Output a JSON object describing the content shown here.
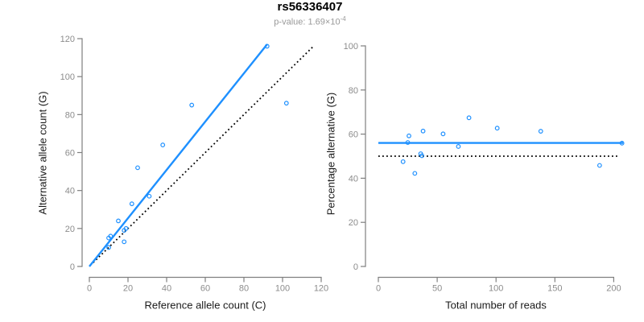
{
  "title": "rs56336407",
  "subtitle": {
    "base": "p-value: 1.69×10",
    "exponent": "-4"
  },
  "colors": {
    "accent": "#1E90FF",
    "axis_line": "#7f7f7f",
    "tick_label": "#8c8c8c",
    "axis_label": "#1a1a1a",
    "title": "#000000",
    "subtitle": "#999999",
    "dotted_line": "#000000",
    "background": "#ffffff"
  },
  "chart_data": [
    {
      "id": "allele-counts",
      "type": "scatter",
      "xlabel": "Reference allele count (C)",
      "ylabel": "Alternative allele count (G)",
      "xlim": [
        0,
        120
      ],
      "ylim": [
        0,
        120
      ],
      "xticks": [
        0,
        20,
        40,
        60,
        80,
        100,
        120
      ],
      "yticks": [
        0,
        20,
        40,
        60,
        80,
        100,
        120
      ],
      "grid": false,
      "legend": "none",
      "points": [
        [
          10,
          10
        ],
        [
          10,
          15
        ],
        [
          11,
          16
        ],
        [
          15,
          24
        ],
        [
          18,
          13
        ],
        [
          18,
          19
        ],
        [
          19,
          20
        ],
        [
          22,
          33
        ],
        [
          25,
          52
        ],
        [
          31,
          37
        ],
        [
          38,
          64
        ],
        [
          53,
          85
        ],
        [
          92,
          116
        ],
        [
          102,
          86
        ]
      ],
      "lines": [
        {
          "name": "fit-line",
          "style": "solid",
          "color": "#1E90FF",
          "width": 2.4,
          "from": [
            0,
            0
          ],
          "to": [
            92,
            117
          ]
        },
        {
          "name": "identity-line",
          "style": "dotted",
          "color": "#000000",
          "width": 1.8,
          "from": [
            2,
            2
          ],
          "to": [
            116,
            116
          ]
        }
      ]
    },
    {
      "id": "percentage-vs-reads",
      "type": "scatter",
      "xlabel": "Total number of reads",
      "ylabel": "Percentage alternative (G)",
      "xlim": [
        0,
        210
      ],
      "ylim": [
        0,
        100
      ],
      "xticks": [
        0,
        50,
        100,
        150,
        200
      ],
      "yticks": [
        0,
        20,
        40,
        60,
        80,
        100
      ],
      "grid": false,
      "legend": "none",
      "points": [
        [
          21,
          47.5
        ],
        [
          25,
          56.2
        ],
        [
          26,
          59.2
        ],
        [
          31,
          42.2
        ],
        [
          36,
          51.1
        ],
        [
          37,
          50.2
        ],
        [
          38,
          61.4
        ],
        [
          55,
          60.1
        ],
        [
          68,
          54.4
        ],
        [
          77,
          67.4
        ],
        [
          101,
          62.7
        ],
        [
          138,
          61.3
        ],
        [
          188,
          45.8
        ],
        [
          207,
          55.9
        ]
      ],
      "lines": [
        {
          "name": "mean-line",
          "style": "solid",
          "color": "#1E90FF",
          "width": 2.4,
          "from": [
            0,
            56
          ],
          "to": [
            208,
            56
          ]
        },
        {
          "name": "null-line",
          "style": "dotted",
          "color": "#000000",
          "width": 1.8,
          "from": [
            0,
            50
          ],
          "to": [
            203,
            50
          ]
        }
      ]
    }
  ]
}
